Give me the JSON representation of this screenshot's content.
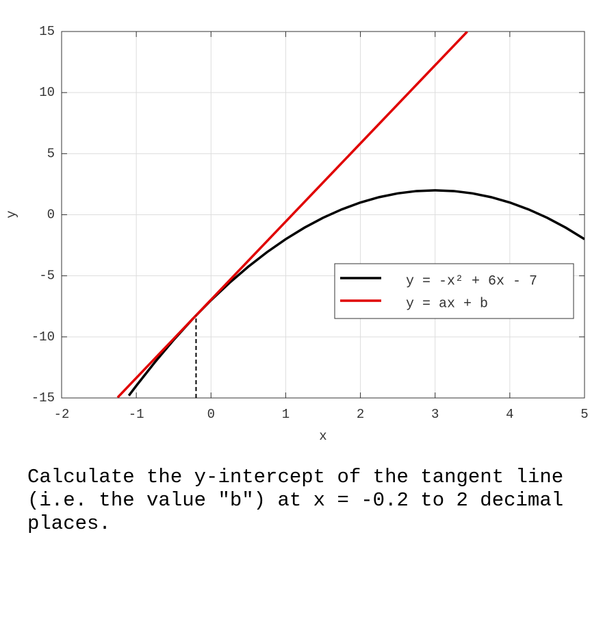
{
  "chart_data": {
    "type": "line",
    "x_label": "x",
    "y_label": "y",
    "xlim": [
      -2,
      5
    ],
    "xticks": [
      -2,
      -1,
      0,
      1,
      2,
      3,
      4,
      5
    ],
    "ylim": [
      -15,
      15
    ],
    "yticks": [
      -15,
      -10,
      -5,
      0,
      5,
      10,
      15
    ],
    "grid": true,
    "legend": "right",
    "series": [
      {
        "name": "y = -x² + 6x - 7",
        "color": "#000000",
        "x": [
          -1.1,
          -1,
          -0.75,
          -0.5,
          -0.25,
          0,
          0.25,
          0.5,
          0.75,
          1,
          1.25,
          1.5,
          1.75,
          2,
          2.25,
          2.5,
          2.75,
          3,
          3.25,
          3.5,
          3.75,
          4,
          4.25,
          4.5,
          4.75,
          5
        ],
        "values": [
          -14.81,
          -14,
          -12.0625,
          -10.25,
          -8.5625,
          -7,
          -5.5625,
          -4.25,
          -3.0625,
          -2,
          -1.0625,
          -0.25,
          0.4375,
          1,
          1.4375,
          1.75,
          1.9375,
          2,
          1.9375,
          1.75,
          1.4375,
          1,
          0.4375,
          -0.25,
          -1.0625,
          -2
        ]
      },
      {
        "name": "y = ax + b",
        "color": "#e00000",
        "x": [
          -1.25,
          3.43
        ],
        "values": [
          -14.96,
          14.99
        ]
      }
    ],
    "marker": {
      "x": -0.2,
      "y": -8.24
    }
  },
  "question": "Calculate the y-intercept of the tangent line (i.e. the value \"b\") at x = -0.2 to 2 decimal places."
}
